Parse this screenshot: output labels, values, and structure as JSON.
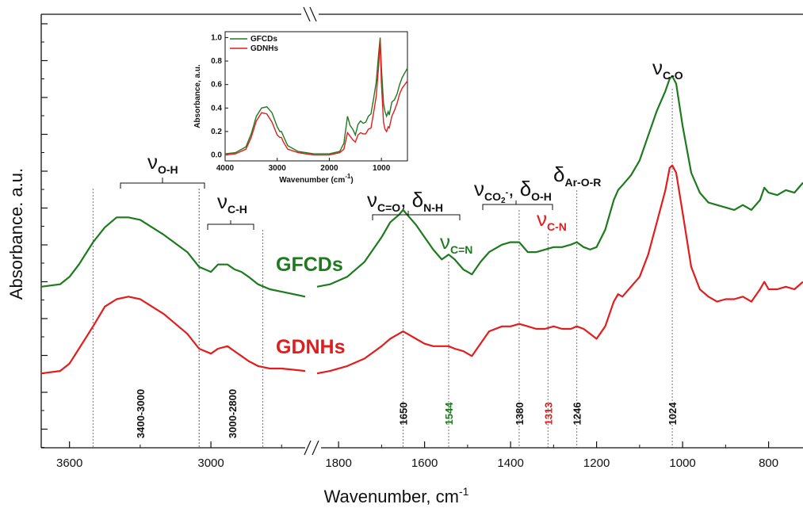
{
  "chart_data": {
    "type": "line",
    "xlabel": "Wavenumber, cm",
    "xlabel_sup": "-1",
    "ylabel": "Absorbance. a.u.",
    "x_axis_break": [
      2600,
      1850
    ],
    "x_ticks": [
      3600,
      3000,
      1800,
      1600,
      1400,
      1200,
      1000,
      800
    ],
    "x_tick_labels": [
      "3600",
      "3000",
      "1800",
      "1600",
      "1400",
      "1200",
      "1000",
      "800"
    ],
    "series": [
      {
        "name": "GFCDs",
        "color": "#1e7a1e",
        "x": [
          3720,
          3640,
          3600,
          3560,
          3500,
          3450,
          3400,
          3350,
          3300,
          3200,
          3100,
          3050,
          3000,
          2970,
          2930,
          2900,
          2870,
          2840,
          2800,
          2750,
          2700,
          2600,
          1850,
          1820,
          1780,
          1740,
          1700,
          1680,
          1660,
          1650,
          1640,
          1620,
          1600,
          1580,
          1560,
          1544,
          1530,
          1510,
          1490,
          1470,
          1450,
          1420,
          1400,
          1380,
          1360,
          1340,
          1320,
          1300,
          1280,
          1260,
          1246,
          1230,
          1215,
          1200,
          1180,
          1160,
          1150,
          1140,
          1120,
          1100,
          1080,
          1060,
          1040,
          1030,
          1024,
          1015,
          1000,
          980,
          960,
          940,
          920,
          900,
          880,
          860,
          840,
          820,
          810,
          800,
          780,
          760,
          740,
          720
        ],
        "values": [
          0.1,
          0.11,
          0.14,
          0.19,
          0.28,
          0.34,
          0.38,
          0.38,
          0.37,
          0.31,
          0.24,
          0.18,
          0.16,
          0.19,
          0.19,
          0.17,
          0.16,
          0.14,
          0.11,
          0.09,
          0.08,
          0.06,
          0.1,
          0.11,
          0.14,
          0.2,
          0.3,
          0.36,
          0.39,
          0.41,
          0.39,
          0.35,
          0.3,
          0.25,
          0.21,
          0.23,
          0.21,
          0.17,
          0.15,
          0.2,
          0.24,
          0.27,
          0.28,
          0.28,
          0.24,
          0.24,
          0.25,
          0.26,
          0.26,
          0.27,
          0.28,
          0.26,
          0.25,
          0.26,
          0.33,
          0.45,
          0.49,
          0.51,
          0.55,
          0.61,
          0.71,
          0.81,
          0.89,
          0.94,
          0.95,
          0.92,
          0.75,
          0.56,
          0.48,
          0.44,
          0.43,
          0.42,
          0.41,
          0.43,
          0.41,
          0.45,
          0.5,
          0.48,
          0.47,
          0.49,
          0.48,
          0.52
        ]
      },
      {
        "name": "GDNHs",
        "color": "#e11d1d",
        "x": [
          3720,
          3640,
          3600,
          3560,
          3500,
          3450,
          3400,
          3350,
          3300,
          3200,
          3100,
          3050,
          3000,
          2970,
          2930,
          2900,
          2870,
          2840,
          2800,
          2750,
          2700,
          2600,
          1850,
          1820,
          1780,
          1740,
          1700,
          1680,
          1660,
          1650,
          1640,
          1620,
          1600,
          1580,
          1560,
          1544,
          1530,
          1510,
          1490,
          1470,
          1450,
          1420,
          1400,
          1380,
          1360,
          1340,
          1320,
          1300,
          1280,
          1260,
          1246,
          1230,
          1215,
          1200,
          1180,
          1160,
          1150,
          1140,
          1120,
          1100,
          1080,
          1060,
          1040,
          1030,
          1024,
          1015,
          1000,
          980,
          960,
          940,
          920,
          900,
          880,
          860,
          840,
          820,
          810,
          800,
          780,
          760,
          740,
          720
        ],
        "values": [
          -0.25,
          -0.24,
          -0.21,
          -0.15,
          -0.06,
          0.02,
          0.05,
          0.06,
          0.05,
          -0.01,
          -0.09,
          -0.15,
          -0.17,
          -0.15,
          -0.14,
          -0.16,
          -0.18,
          -0.2,
          -0.22,
          -0.23,
          -0.23,
          -0.24,
          -0.25,
          -0.24,
          -0.22,
          -0.19,
          -0.14,
          -0.11,
          -0.09,
          -0.08,
          -0.09,
          -0.11,
          -0.13,
          -0.14,
          -0.14,
          -0.14,
          -0.15,
          -0.16,
          -0.18,
          -0.13,
          -0.08,
          -0.06,
          -0.06,
          -0.05,
          -0.06,
          -0.07,
          -0.07,
          -0.06,
          -0.07,
          -0.07,
          -0.06,
          -0.07,
          -0.09,
          -0.11,
          -0.06,
          0.04,
          0.07,
          0.06,
          0.1,
          0.14,
          0.23,
          0.36,
          0.49,
          0.58,
          0.59,
          0.56,
          0.4,
          0.18,
          0.09,
          0.06,
          0.04,
          0.05,
          0.05,
          0.06,
          0.04,
          0.09,
          0.12,
          0.09,
          0.09,
          0.1,
          0.09,
          0.12
        ]
      }
    ],
    "series_labels": [
      "GFCDs",
      "GDNHs"
    ],
    "peaks": [
      {
        "label": "3400-3000",
        "x": 3300,
        "color": "#111111",
        "line_xs": [
          3500,
          3050
        ]
      },
      {
        "label": "3000-2800",
        "x": 2910,
        "color": "#111111",
        "line_xs": [
          3050,
          2780
        ]
      },
      {
        "label": "1650",
        "x": 1650,
        "color": "#111111",
        "line_xs": [
          1650
        ]
      },
      {
        "label": "1544",
        "x": 1544,
        "color": "#1e7a1e",
        "line_xs": [
          1544
        ]
      },
      {
        "label": "1380",
        "x": 1380,
        "color": "#111111",
        "line_xs": [
          1380
        ]
      },
      {
        "label": "1313",
        "x": 1313,
        "color": "#e11d1d",
        "line_xs": [
          1313
        ]
      },
      {
        "label": "1246",
        "x": 1246,
        "color": "#111111",
        "line_xs": [
          1246
        ]
      },
      {
        "label": "1024",
        "x": 1024,
        "color": "#111111",
        "line_xs": [
          1024
        ]
      }
    ],
    "annotations": [
      {
        "symbol": "ν",
        "sub": "O-H",
        "color": "#111111"
      },
      {
        "symbol": "ν",
        "sub": "C-H",
        "color": "#111111"
      },
      {
        "symbol": "ν",
        "sub": "C=O",
        "extra_symbol": "δ",
        "extra_sub": "N-H",
        "color": "#111111"
      },
      {
        "symbol": "ν",
        "sub": "C=N",
        "color": "#1e7a1e"
      },
      {
        "symbol": "ν",
        "sub": "CO",
        "sub2": "2",
        "sup": "-",
        "extra_symbol": "δ",
        "extra_sub": "O-H",
        "color": "#111111"
      },
      {
        "symbol": "ν",
        "sub": "C-N",
        "color": "#e11d1d"
      },
      {
        "symbol": "δ",
        "sub": "Ar-O-R",
        "color": "#111111"
      },
      {
        "symbol": "ν",
        "sub": "C-O",
        "color": "#111111"
      }
    ],
    "inset": {
      "type": "line",
      "xlabel": "Wavenumber (cm",
      "xlabel_sup": "-1",
      "xlabel_end": ")",
      "ylabel": "Absorbance, a.u.",
      "x_range": [
        4000,
        500
      ],
      "y_range": [
        -0.05,
        1.05
      ],
      "x_ticks": [
        4000,
        3000,
        2000,
        1000
      ],
      "y_ticks": [
        0.0,
        0.2,
        0.4,
        0.6,
        0.8,
        1.0
      ],
      "y_tick_labels": [
        "0.0",
        "0.2",
        "0.4",
        "0.6",
        "0.8",
        "1.0"
      ],
      "legend": [
        "GFCDs",
        "GDNHs"
      ],
      "legend_position": "top-left",
      "series": [
        {
          "name": "GFCDs",
          "color": "#1e7a1e",
          "x": [
            4000,
            3800,
            3600,
            3500,
            3400,
            3300,
            3200,
            3100,
            3000,
            2950,
            2920,
            2880,
            2800,
            2600,
            2300,
            2000,
            1800,
            1720,
            1650,
            1600,
            1550,
            1500,
            1450,
            1400,
            1350,
            1300,
            1250,
            1200,
            1150,
            1100,
            1050,
            1024,
            1000,
            960,
            930,
            900,
            870,
            850,
            800,
            750,
            700,
            650,
            600,
            550,
            500
          ],
          "values": [
            0.01,
            0.02,
            0.07,
            0.18,
            0.33,
            0.4,
            0.41,
            0.36,
            0.24,
            0.2,
            0.2,
            0.16,
            0.08,
            0.03,
            0.01,
            0.01,
            0.03,
            0.1,
            0.33,
            0.25,
            0.22,
            0.17,
            0.26,
            0.29,
            0.27,
            0.28,
            0.33,
            0.35,
            0.48,
            0.62,
            0.88,
            1.0,
            0.75,
            0.44,
            0.37,
            0.33,
            0.37,
            0.34,
            0.45,
            0.47,
            0.52,
            0.6,
            0.66,
            0.7,
            0.74
          ]
        },
        {
          "name": "GDNHs",
          "color": "#e11d1d",
          "x": [
            4000,
            3800,
            3600,
            3500,
            3400,
            3300,
            3200,
            3100,
            3000,
            2950,
            2920,
            2880,
            2800,
            2600,
            2300,
            2000,
            1800,
            1720,
            1650,
            1600,
            1550,
            1500,
            1450,
            1400,
            1350,
            1300,
            1250,
            1200,
            1150,
            1100,
            1050,
            1024,
            1000,
            960,
            930,
            900,
            870,
            850,
            800,
            750,
            700,
            650,
            600,
            550,
            500
          ],
          "values": [
            0.0,
            0.01,
            0.05,
            0.15,
            0.29,
            0.36,
            0.35,
            0.28,
            0.17,
            0.15,
            0.15,
            0.11,
            0.05,
            0.02,
            0.0,
            0.0,
            0.02,
            0.05,
            0.19,
            0.16,
            0.13,
            0.11,
            0.17,
            0.19,
            0.18,
            0.18,
            0.22,
            0.23,
            0.36,
            0.5,
            0.78,
            0.98,
            0.62,
            0.28,
            0.22,
            0.2,
            0.24,
            0.23,
            0.33,
            0.38,
            0.44,
            0.52,
            0.57,
            0.6,
            0.63
          ]
        }
      ]
    }
  }
}
